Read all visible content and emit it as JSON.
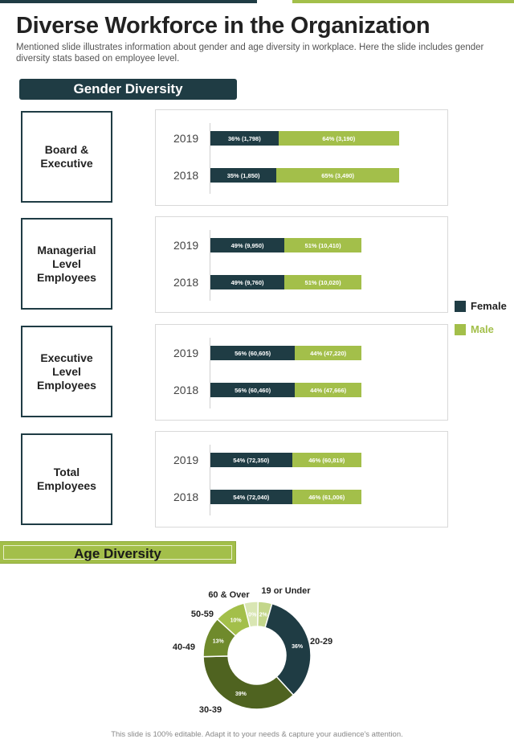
{
  "title": "Diverse Workforce in the Organization",
  "subtitle": "Mentioned slide illustrates information  about gender and age diversity  in workplace. Here the slide includes gender diversity stats based on employee level.",
  "gender_section_title": "Gender Diversity",
  "age_section_title": "Age Diversity",
  "footer": "This slide is 100% editable. Adapt it to your needs & capture your audience's attention.",
  "colors": {
    "female": "#1f3c44",
    "male": "#a3bf4a"
  },
  "chart_data": [
    {
      "type": "bar",
      "orientation": "horizontal-stacked",
      "title": "Gender Diversity",
      "legend": [
        "Female",
        "Male"
      ],
      "legend_position": "right",
      "groups": [
        {
          "category": "Board &\nExecutive",
          "rows": [
            {
              "year": "2019",
              "female": {
                "pct": 36,
                "label": "36% (1,798)"
              },
              "male": {
                "pct": 64,
                "label": "64% (3,190)"
              },
              "total": 100
            },
            {
              "year": "2018",
              "female": {
                "pct": 35,
                "label": "35% (1,850)"
              },
              "male": {
                "pct": 65,
                "label": "65% (3,490)"
              },
              "total": 100
            }
          ]
        },
        {
          "category": "Managerial\nLevel\nEmployees",
          "rows": [
            {
              "year": "2019",
              "female": {
                "pct": 49,
                "label": "49% (9,950)"
              },
              "male": {
                "pct": 51,
                "label": "51% (10,410)"
              },
              "total": 80
            },
            {
              "year": "2018",
              "female": {
                "pct": 49,
                "label": "49% (9,760)"
              },
              "male": {
                "pct": 51,
                "label": "51% (10,020)"
              },
              "total": 80
            }
          ]
        },
        {
          "category": "Executive\nLevel\nEmployees",
          "rows": [
            {
              "year": "2019",
              "female": {
                "pct": 56,
                "label": "56% (60,605)"
              },
              "male": {
                "pct": 44,
                "label": "44% (47,220)"
              },
              "total": 80
            },
            {
              "year": "2018",
              "female": {
                "pct": 56,
                "label": "56% (60,460)"
              },
              "male": {
                "pct": 44,
                "label": "44% (47,666)"
              },
              "total": 80
            }
          ]
        },
        {
          "category": "Total\nEmployees",
          "rows": [
            {
              "year": "2019",
              "female": {
                "pct": 54,
                "label": "54% (72,350)"
              },
              "male": {
                "pct": 46,
                "label": "46% (60,819)"
              },
              "total": 80
            },
            {
              "year": "2018",
              "female": {
                "pct": 54,
                "label": "54% (72,040)"
              },
              "male": {
                "pct": 46,
                "label": "46% (61,006)"
              },
              "total": 80
            }
          ]
        }
      ]
    },
    {
      "type": "pie",
      "variant": "donut",
      "title": "Age Diversity",
      "slices": [
        {
          "name": "19 or Under",
          "value": 2,
          "label": "2%",
          "color": "#c3d68a"
        },
        {
          "name": "20-29",
          "value": 36,
          "label": "36%",
          "color": "#1f3c44"
        },
        {
          "name": "30-39",
          "value": 39,
          "label": "39%",
          "color": "#4f6320"
        },
        {
          "name": "40-49",
          "value": 13,
          "label": "13%",
          "color": "#6f8a2c"
        },
        {
          "name": "50-59",
          "value": 10,
          "label": "10%",
          "color": "#a3bf4a"
        },
        {
          "name": "60 & Over",
          "value": 0,
          "label": "0%",
          "color": "#d9e6b3"
        }
      ]
    }
  ]
}
